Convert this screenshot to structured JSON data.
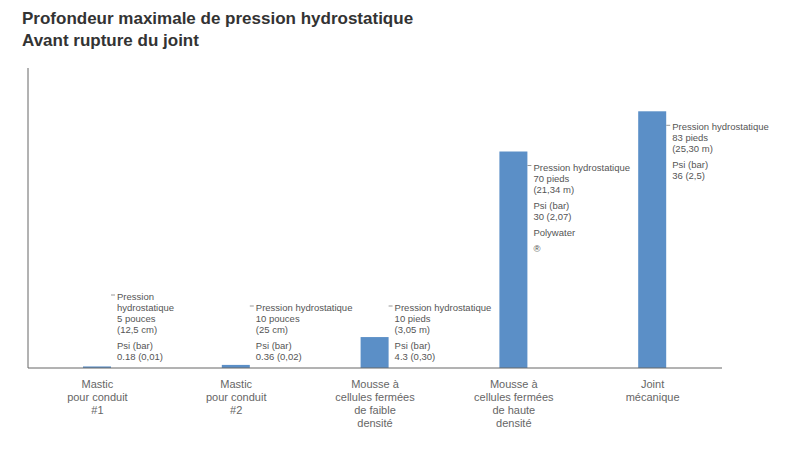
{
  "chart_data": {
    "type": "bar",
    "title": "Profondeur maximale de pression hydrostatique",
    "subtitle": "Avant rupture du joint",
    "categories": [
      "Mastic\npour conduit\n#1",
      "Mastic\npour conduit\n#2",
      "Mousse à\ncellules fermées\nde faible\ndensité",
      "Mousse à\ncellules fermées\nde haute\ndensité",
      "Joint\nmécanique"
    ],
    "values": [
      0.5,
      1.0,
      10,
      70,
      83
    ],
    "color": "#5b8fc7",
    "ylim": [
      0,
      97
    ],
    "yticks": [
      0,
      10,
      20,
      30,
      40,
      50,
      60,
      70,
      80,
      90
    ],
    "grid": true,
    "tick_labels": "x",
    "annotations": [
      {
        "category": "Mastic\npour conduit\n#1",
        "text": "Pression\nhydrostatique\n5 pouces\n(12,5 cm)"
      },
      {
        "category": "Mastic\npour conduit\n#1",
        "text": "Psi (bar)\n0.18 (0,01)"
      },
      {
        "category": "Mastic\npour conduit\n#2",
        "text": "Pression hydrostatique\n10 pouces\n(25 cm)"
      },
      {
        "category": "Mastic\npour conduit\n#2",
        "text": "Psi (bar)\n0.36 (0,02)"
      },
      {
        "category": "Mousse à\ncellules fermées\nde faible\ndensité",
        "text": "Pression hydrostatique\n10 pieds\n(3,05 m)"
      },
      {
        "category": "Mousse à\ncellules fermées\nde faible\ndensité",
        "text": "Psi (bar)\n4.3 (0,30)"
      },
      {
        "category": "Mousse à\ncellules fermées\nde haute\ndensité",
        "text": "Pression hydrostatique\n70 pieds\n(21,34 m)"
      },
      {
        "category": "Mousse à\ncellules fermées\nde haute\ndensité",
        "text": "Psi (bar)\n30 (2,07)"
      },
      {
        "category": "Mousse à\ncellules fermées\nde haute\ndensité",
        "text": "Polywater"
      },
      {
        "category": "Mousse à\ncellules fermées\nde haute\ndensité",
        "text": "®"
      },
      {
        "category": "Joint\nmécanique",
        "text": "Pression hydrostatique\n83 pieds\n(25,30 m)"
      },
      {
        "category": "Joint\nmécanique",
        "text": "Psi (bar)\n36 (2,5)"
      }
    ]
  }
}
